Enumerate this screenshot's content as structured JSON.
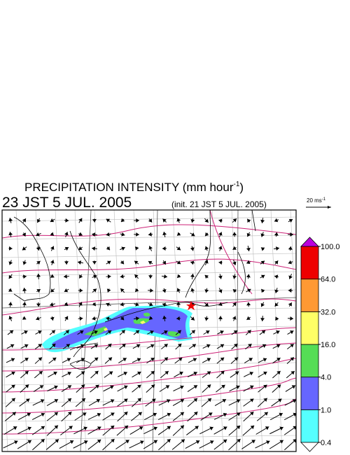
{
  "header": {
    "title": "PRECIPITATION INTENSITY (mm hour",
    "title_superscript": "-1",
    "title_close": ")",
    "valid_time": "23 JST 5 JUL. 2005",
    "init_time": "(init. 21 JST 5 JUL. 2005)"
  },
  "wind_scale": {
    "label": "20 ms",
    "superscript": "-1"
  },
  "colorbar": {
    "levels": [
      {
        "value": 0.4,
        "label": "0.4"
      },
      {
        "value": 1,
        "label": "1.0"
      },
      {
        "value": 4,
        "label": "4.0"
      },
      {
        "value": 16,
        "label": "16.0"
      },
      {
        "value": 32,
        "label": "32.0"
      },
      {
        "value": 64,
        "label": "64.0"
      },
      {
        "value": 100,
        "label": "100.0"
      }
    ],
    "colors": [
      "#55ffff",
      "#6666ff",
      "#55dd55",
      "#ffff66",
      "#ff9933",
      "#ee0000"
    ],
    "under_color": "#ffffff",
    "over_color": "#bb00dd"
  }
}
